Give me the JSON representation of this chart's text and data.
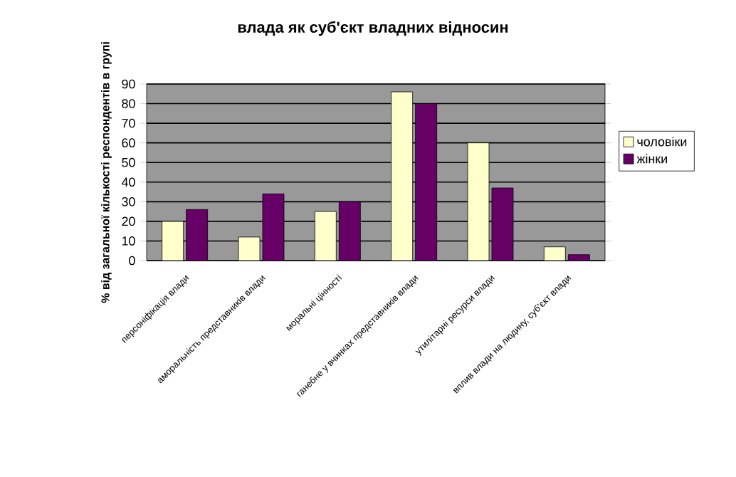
{
  "chart_data": {
    "type": "bar",
    "title": "влада як суб'єкт владних відносин",
    "ylabel": "% від загальної кількості респондентів в групі",
    "categories": [
      "персоніфікація влади",
      "аморальність представників влади",
      "моральні цінності",
      "ганебне у вчинках представників влади",
      "утилітарні ресурси влади",
      "вплив влади на людину, суб'єкт влади"
    ],
    "series": [
      {
        "name": "чоловіки",
        "color": "#ffffcc",
        "values": [
          20,
          12,
          25,
          86,
          60,
          7
        ]
      },
      {
        "name": "жінки",
        "color": "#660066",
        "values": [
          26,
          34,
          30,
          80,
          37,
          3
        ]
      }
    ],
    "ylim": [
      0,
      90
    ],
    "yticks": [
      0,
      10,
      20,
      30,
      40,
      50,
      60,
      70,
      80,
      90
    ],
    "grid": "y",
    "legend": "right"
  }
}
